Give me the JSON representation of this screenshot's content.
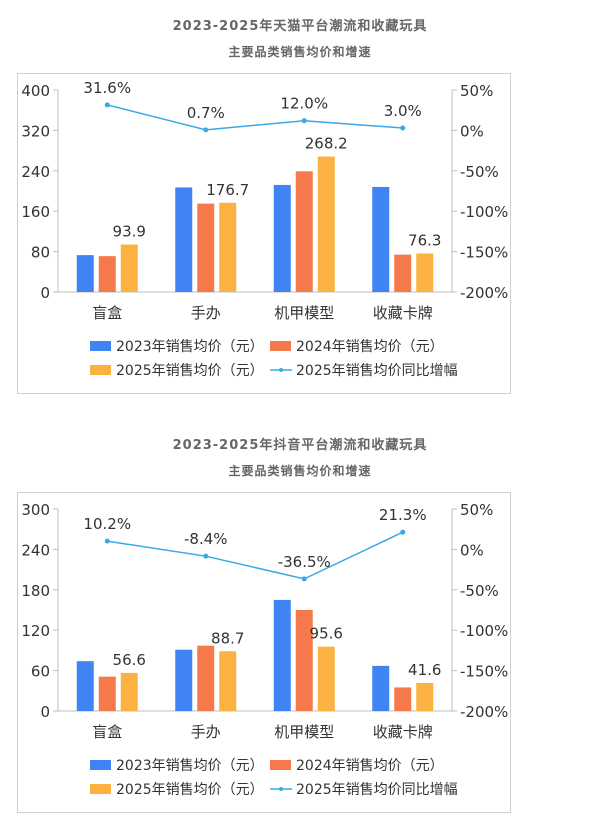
{
  "colors": {
    "s2023": "#3F84F2",
    "s2024": "#F5794A",
    "s2025": "#FCB241",
    "line": "#39A9E4",
    "axis": "#BFBFBF",
    "text": "#333333",
    "title": "#666666"
  },
  "chart_data": [
    {
      "type": "bar",
      "title": "2023-2025年天猫平台潮流和收藏玩具",
      "subtitle": "主要品类销售均价和增速",
      "categories": [
        "盲盒",
        "手办",
        "机甲模型",
        "收藏卡牌"
      ],
      "ylim": [
        0,
        400
      ],
      "yticks": [
        "0",
        "80",
        "160",
        "240",
        "320",
        "400"
      ],
      "y2lim": [
        -200,
        50
      ],
      "y2ticks": [
        "-200%",
        "-150%",
        "-100%",
        "-50%",
        "0%",
        "50%"
      ],
      "legend_position": "bottom",
      "series": [
        {
          "name": "2023年销售均价（元）",
          "type": "bar",
          "values": [
            73,
            207,
            212,
            208
          ]
        },
        {
          "name": "2024年销售均价（元）",
          "type": "bar",
          "values": [
            71,
            175,
            239,
            74
          ]
        },
        {
          "name": "2025年销售均价（元）",
          "type": "bar",
          "values": [
            93.9,
            176.7,
            268.2,
            76.3
          ],
          "labels": [
            "93.9",
            "176.7",
            "268.2",
            "76.3"
          ]
        },
        {
          "name": "2025年销售均价同比增幅",
          "type": "line",
          "axis": "right",
          "values": [
            31.6,
            0.7,
            12.0,
            3.0
          ],
          "labels": [
            "31.6%",
            "0.7%",
            "12.0%",
            "3.0%"
          ]
        }
      ]
    },
    {
      "type": "bar",
      "title": "2023-2025年抖音平台潮流和收藏玩具",
      "subtitle": "主要品类销售均价和增速",
      "categories": [
        "盲盒",
        "手办",
        "机甲模型",
        "收藏卡牌"
      ],
      "ylim": [
        0,
        300
      ],
      "yticks": [
        "0",
        "60",
        "120",
        "180",
        "240",
        "300"
      ],
      "y2lim": [
        -200,
        50
      ],
      "y2ticks": [
        "-200%",
        "-150%",
        "-100%",
        "-50%",
        "0%",
        "50%"
      ],
      "legend_position": "bottom",
      "series": [
        {
          "name": "2023年销售均价（元）",
          "type": "bar",
          "values": [
            74,
            91,
            165,
            67
          ]
        },
        {
          "name": "2024年销售均价（元）",
          "type": "bar",
          "values": [
            51,
            97,
            150,
            35
          ]
        },
        {
          "name": "2025年销售均价（元）",
          "type": "bar",
          "values": [
            56.6,
            88.7,
            95.6,
            41.6
          ],
          "labels": [
            "56.6",
            "88.7",
            "95.6",
            "41.6"
          ]
        },
        {
          "name": "2025年销售均价同比增幅",
          "type": "line",
          "axis": "right",
          "values": [
            10.2,
            -8.4,
            -36.5,
            21.3
          ],
          "labels": [
            "10.2%",
            "-8.4%",
            "-36.5%",
            "21.3%"
          ]
        }
      ]
    }
  ]
}
